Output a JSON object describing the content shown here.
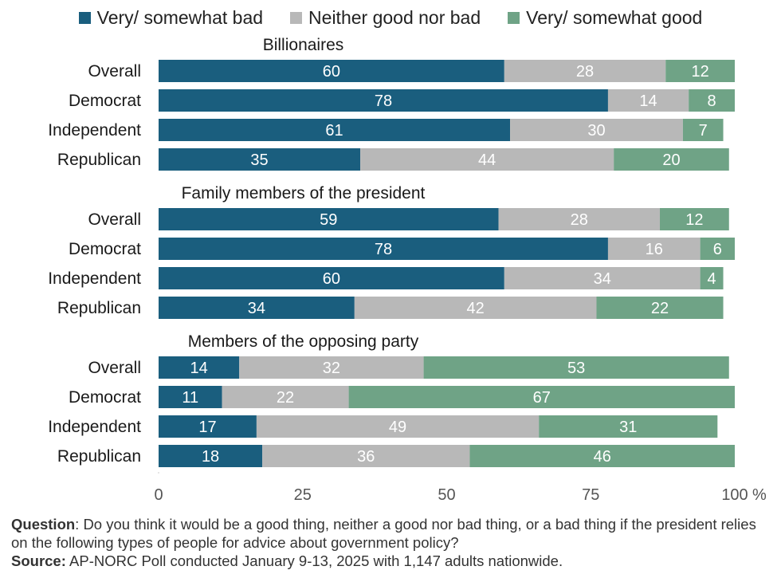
{
  "colors": {
    "bad": "#1a5e7e",
    "neither": "#b8b8b8",
    "good": "#6fa386"
  },
  "chart_data": {
    "type": "bar",
    "orientation": "horizontal",
    "stacked": true,
    "legend": "top",
    "grid": false,
    "xlim": [
      0,
      100
    ],
    "x_ticks": [
      "0",
      "25",
      "50",
      "75",
      "100"
    ],
    "x_unit": "%",
    "series_names": [
      "Very/ somewhat bad",
      "Neither good nor bad",
      "Very/ somewhat good"
    ],
    "groups": [
      {
        "title": "Billionaires",
        "categories": [
          "Overall",
          "Democrat",
          "Independent",
          "Republican"
        ],
        "series": [
          {
            "name": "Very/ somewhat bad",
            "values": [
              60,
              78,
              61,
              35
            ]
          },
          {
            "name": "Neither good nor bad",
            "values": [
              28,
              14,
              30,
              44
            ]
          },
          {
            "name": "Very/ somewhat good",
            "values": [
              12,
              8,
              7,
              20
            ]
          }
        ]
      },
      {
        "title": "Family members of the president",
        "categories": [
          "Overall",
          "Democrat",
          "Independent",
          "Republican"
        ],
        "series": [
          {
            "name": "Very/ somewhat bad",
            "values": [
              59,
              78,
              60,
              34
            ]
          },
          {
            "name": "Neither good nor bad",
            "values": [
              28,
              16,
              34,
              42
            ]
          },
          {
            "name": "Very/ somewhat good",
            "values": [
              12,
              6,
              4,
              22
            ]
          }
        ]
      },
      {
        "title": "Members of the opposing party",
        "categories": [
          "Overall",
          "Democrat",
          "Independent",
          "Republican"
        ],
        "series": [
          {
            "name": "Very/ somewhat bad",
            "values": [
              14,
              11,
              17,
              18
            ]
          },
          {
            "name": "Neither good nor bad",
            "values": [
              32,
              22,
              49,
              36
            ]
          },
          {
            "name": "Very/ somewhat good",
            "values": [
              53,
              67,
              31,
              46
            ]
          }
        ]
      }
    ]
  },
  "notes": {
    "question_label": "Question",
    "question_text": ": Do you think it would be a good thing, neither a good nor bad thing, or a bad thing if the president relies on the following types of people for advice about government policy?",
    "source_label": "Source:",
    "source_text": " AP-NORC Poll conducted January 9-13, 2025 with 1,147 adults nationwide."
  }
}
